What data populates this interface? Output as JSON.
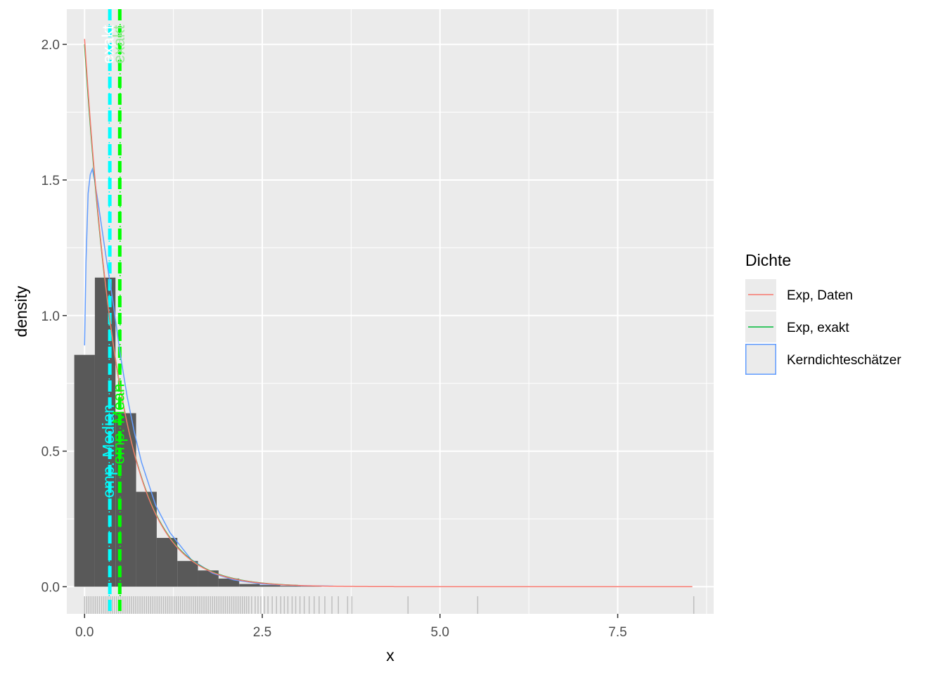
{
  "chart_data": {
    "type": "histogram",
    "title": "",
    "xlabel": "x",
    "ylabel": "density",
    "xlim": [
      -0.25,
      8.85
    ],
    "ylim": [
      -0.1,
      2.13
    ],
    "x_ticks": [
      0,
      2.5,
      5,
      7.5
    ],
    "x_tick_labels": [
      "0.0",
      "2.5",
      "5.0",
      "7.5"
    ],
    "y_ticks": [
      0,
      0.5,
      1,
      1.5,
      2
    ],
    "y_tick_labels": [
      "0.0",
      "0.5",
      "1.0",
      "1.5",
      "2.0"
    ],
    "grid": true,
    "colors": {
      "panel": "#ebebeb",
      "grid": "#ffffff",
      "bars": "#595959",
      "rug": "#bebebe",
      "exp_daten": "#f8766d",
      "exp_exakt": "#00ba38",
      "kde": "#619cff",
      "median_line": "#00ffff",
      "mean_line": "#00ff00"
    },
    "histogram": {
      "binwidth": 0.29,
      "bins": [
        {
          "start": -0.145,
          "end": 0.145,
          "density": 0.855
        },
        {
          "start": 0.145,
          "end": 0.435,
          "density": 1.14
        },
        {
          "start": 0.435,
          "end": 0.725,
          "density": 0.64
        },
        {
          "start": 0.725,
          "end": 1.015,
          "density": 0.35
        },
        {
          "start": 1.015,
          "end": 1.305,
          "density": 0.18
        },
        {
          "start": 1.305,
          "end": 1.595,
          "density": 0.095
        },
        {
          "start": 1.595,
          "end": 1.885,
          "density": 0.06
        },
        {
          "start": 1.885,
          "end": 2.175,
          "density": 0.03
        },
        {
          "start": 2.175,
          "end": 2.465,
          "density": 0.01
        },
        {
          "start": 2.465,
          "end": 2.755,
          "density": 0.006
        },
        {
          "start": 2.755,
          "end": 3.045,
          "density": 0.003
        },
        {
          "start": 3.045,
          "end": 3.335,
          "density": 0.002
        }
      ]
    },
    "series": [
      {
        "name": "Exp, Daten",
        "kind": "exponential",
        "rate": 2.02,
        "x_range": [
          0,
          8.55
        ]
      },
      {
        "name": "Exp, exakt",
        "kind": "exponential",
        "rate": 2.0,
        "x_range": [
          0,
          3.0
        ]
      },
      {
        "name": "Kerndichteschätzer",
        "kind": "kde",
        "x": [
          0,
          0.02,
          0.05,
          0.08,
          0.11,
          0.14,
          0.2,
          0.3,
          0.4,
          0.5,
          0.6,
          0.7,
          0.8,
          1.0,
          1.2,
          1.5,
          1.8,
          2.1,
          2.5,
          3.0,
          3.5
        ],
        "y": [
          0.89,
          1.2,
          1.45,
          1.52,
          1.54,
          1.5,
          1.4,
          1.22,
          1.05,
          0.86,
          0.7,
          0.57,
          0.46,
          0.3,
          0.2,
          0.1,
          0.05,
          0.025,
          0.01,
          0.004,
          0.002
        ]
      }
    ],
    "vlines": [
      {
        "label": "emp. Median",
        "x": 0.355,
        "style": "dashed",
        "color": "#00ffff",
        "label_color": "#00ffff",
        "label_y": 0.5
      },
      {
        "label": "exakt",
        "x": 0.347,
        "style": "dotted",
        "color": "#00ffff",
        "label_color": "#ffffff",
        "label_y": 2.0
      },
      {
        "label": "emp. Mean",
        "x": 0.495,
        "style": "dashed",
        "color": "#00ff00",
        "label_color": "#00ff00",
        "label_y": 0.6
      },
      {
        "label": "exakt",
        "x": 0.5,
        "style": "dotted",
        "color": "#00ff00",
        "label_color": "#9ee59e",
        "label_y": 2.0
      }
    ],
    "rug_x": [
      0.0,
      0.03,
      0.06,
      0.09,
      0.12,
      0.15,
      0.18,
      0.21,
      0.24,
      0.27,
      0.3,
      0.33,
      0.36,
      0.39,
      0.42,
      0.45,
      0.48,
      0.51,
      0.54,
      0.57,
      0.6,
      0.63,
      0.66,
      0.69,
      0.72,
      0.75,
      0.78,
      0.81,
      0.84,
      0.87,
      0.9,
      0.93,
      0.96,
      0.99,
      1.02,
      1.05,
      1.08,
      1.11,
      1.14,
      1.17,
      1.2,
      1.23,
      1.26,
      1.29,
      1.32,
      1.35,
      1.38,
      1.41,
      1.44,
      1.47,
      1.5,
      1.53,
      1.56,
      1.59,
      1.62,
      1.65,
      1.68,
      1.71,
      1.74,
      1.77,
      1.8,
      1.83,
      1.86,
      1.89,
      1.92,
      1.95,
      1.98,
      2.01,
      2.04,
      2.07,
      2.1,
      2.13,
      2.16,
      2.19,
      2.22,
      2.25,
      2.28,
      2.31,
      2.35,
      2.4,
      2.44,
      2.48,
      2.53,
      2.58,
      2.64,
      2.7,
      2.76,
      2.81,
      2.86,
      2.92,
      2.97,
      3.03,
      3.09,
      3.16,
      3.23,
      3.3,
      3.38,
      3.48,
      3.57,
      3.7,
      3.76,
      4.55,
      5.53,
      8.57
    ]
  },
  "legend": {
    "title": "Dichte",
    "position": "right",
    "items": [
      {
        "label": "Exp, Daten",
        "color": "#f8766d",
        "key": "line"
      },
      {
        "label": "Exp, exakt",
        "color": "#00ba38",
        "key": "line"
      },
      {
        "label": "Kerndichteschätzer",
        "color": "#619cff",
        "key": "box"
      }
    ]
  }
}
